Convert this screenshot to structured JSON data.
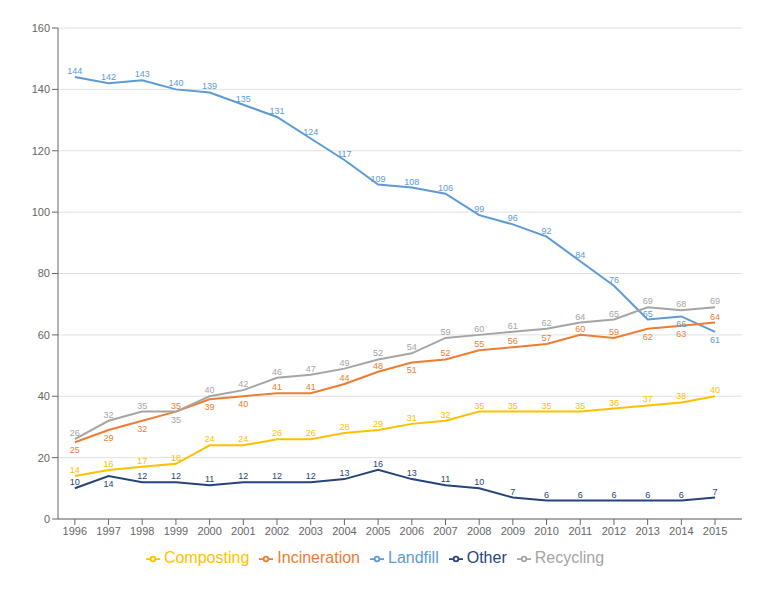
{
  "chart_data": {
    "type": "line",
    "x": [
      1996,
      1997,
      1998,
      1999,
      2000,
      2001,
      2002,
      2003,
      2004,
      2005,
      2006,
      2007,
      2008,
      2009,
      2010,
      2011,
      2012,
      2013,
      2014,
      2015
    ],
    "xlim": [
      1995.5,
      2015.8
    ],
    "xticks": [
      1996,
      1997,
      1998,
      1999,
      2000,
      2001,
      2002,
      2003,
      2004,
      2005,
      2006,
      2007,
      2008,
      2009,
      2010,
      2011,
      2012,
      2013,
      2014,
      2015
    ],
    "ylim": [
      0,
      160
    ],
    "yticks": [
      0,
      20,
      40,
      60,
      80,
      100,
      120,
      140,
      160
    ],
    "grid": "y",
    "legend": "bottom",
    "data_labels": true,
    "series": [
      {
        "name": "Landfill",
        "color": "#5B9BD5",
        "values": [
          144,
          142,
          143,
          140,
          139,
          135,
          131,
          124,
          117,
          109,
          108,
          106,
          99,
          96,
          92,
          84,
          76,
          65,
          66,
          61
        ]
      },
      {
        "name": "Incineration",
        "color": "#ED7D31",
        "values": [
          25,
          29,
          32,
          35,
          39,
          40,
          41,
          41,
          44,
          48,
          51,
          52,
          55,
          56,
          57,
          60,
          59,
          62,
          63,
          64
        ]
      },
      {
        "name": "Recycling",
        "color": "#A5A5A5",
        "values": [
          26,
          32,
          35,
          35,
          40,
          42,
          46,
          47,
          49,
          52,
          54,
          59,
          60,
          61,
          62,
          64,
          65,
          69,
          68,
          69
        ]
      },
      {
        "name": "Composting",
        "color": "#FFC000",
        "values": [
          14,
          16,
          17,
          18,
          24,
          24,
          26,
          26,
          28,
          29,
          31,
          32,
          35,
          35,
          35,
          35,
          36,
          37,
          38,
          40
        ]
      },
      {
        "name": "Other",
        "color": "#264478",
        "values": [
          10,
          14,
          12,
          12,
          11,
          12,
          12,
          12,
          13,
          16,
          13,
          11,
          10,
          7,
          6,
          6,
          6,
          6,
          6,
          7
        ]
      }
    ]
  }
}
